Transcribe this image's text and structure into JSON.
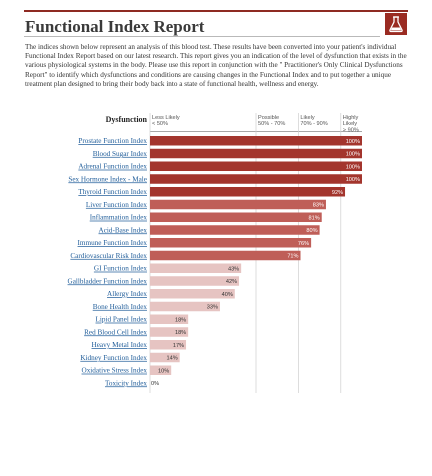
{
  "header": {
    "title": "Functional Index Report",
    "intro": "The indices shown below represent an analysis of this blood test. These results have been converted into your patient's individual Functional Index Report based on our latest research. This report gives you an indication of the level of dysfunction that exists in the various physiological systems in the body. Please use this report in conjunction with the \" Practitioner's Only Clinical Dysfunctions Report\" to identify which dysfunctions and conditions are causing changes in the Functional Index and to put together a unique treatment plan designed to bring their body back into a state of functional health, wellness and energy.",
    "icon": "flask-icon"
  },
  "colors": {
    "accent": "#8e2a22",
    "bar_high": "#a3352d",
    "bar_likely": "#bf5e58",
    "bar_possible": "#dcaeab",
    "bar_less": "#e6c4c2"
  },
  "chart_data": {
    "type": "bar",
    "orientation": "horizontal",
    "category_header": "Dysfunction",
    "xlim": [
      0,
      100
    ],
    "zones": [
      {
        "line1": "Less Likely",
        "line2": "< 50%",
        "from": 0
      },
      {
        "line1": "Possible",
        "line2": "50% - 70%",
        "from": 50
      },
      {
        "line1": "Likely",
        "line2": "70% - 90%",
        "from": 70
      },
      {
        "line1": "Highly",
        "line2": "Likely",
        "line3": "> 90%",
        "from": 90
      }
    ],
    "categories": [
      "Prostate Function Index",
      "Blood Sugar Index",
      "Adrenal Function Index",
      "Sex Hormone Index - Male",
      "Thyroid Function Index",
      "Liver Function Index",
      "Inflammation Index",
      "Acid-Base Index",
      "Immune Function Index",
      "Cardiovascular Risk Index",
      "GI Function Index",
      "Gallbladder Function Index",
      "Allergy Index",
      "Bone Health Index",
      "Lipid Panel Index",
      "Red Blood Cell Index",
      "Heavy Metal Index",
      "Kidney Function Index",
      "Oxidative Stress Index",
      "Toxicity Index"
    ],
    "values": [
      100,
      100,
      100,
      100,
      92,
      83,
      81,
      80,
      76,
      71,
      43,
      42,
      40,
      33,
      18,
      18,
      17,
      14,
      10,
      0
    ],
    "value_labels": [
      "100%",
      "100%",
      "100%",
      "100%",
      "92%",
      "83%",
      "81%",
      "80%",
      "76%",
      "71%",
      "43%",
      "42%",
      "40%",
      "33%",
      "18%",
      "18%",
      "17%",
      "14%",
      "10%",
      "0%"
    ]
  }
}
